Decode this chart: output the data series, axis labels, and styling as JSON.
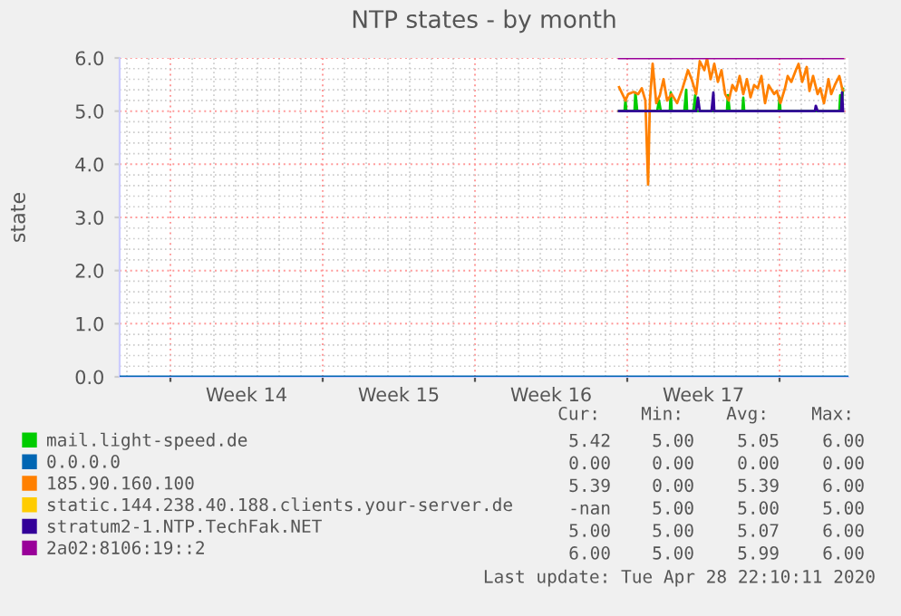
{
  "chart_data": {
    "type": "line",
    "title": "NTP states - by month",
    "ylabel": "state",
    "xlim": [
      "2020-03-26T16:00",
      "2020-04-29T04:00"
    ],
    "ylim": [
      0,
      6
    ],
    "xticks": [
      {
        "value": "2020-03-29T00:00",
        "label": null
      },
      {
        "value": "2020-04-01T12:00",
        "label": "Week 14"
      },
      {
        "value": "2020-04-05T00:00",
        "label": null
      },
      {
        "value": "2020-04-08T12:00",
        "label": "Week 15"
      },
      {
        "value": "2020-04-12T00:00",
        "label": null
      },
      {
        "value": "2020-04-15T12:00",
        "label": "Week 16"
      },
      {
        "value": "2020-04-19T00:00",
        "label": null
      },
      {
        "value": "2020-04-22T12:00",
        "label": "Week 17"
      },
      {
        "value": "2020-04-26T00:00",
        "label": null
      }
    ],
    "yticks": [
      {
        "value": 0,
        "label": "0.0"
      },
      {
        "value": 1,
        "label": "1.0"
      },
      {
        "value": 2,
        "label": "2.0"
      },
      {
        "value": 3,
        "label": "3.0"
      },
      {
        "value": 4,
        "label": "4.0"
      },
      {
        "value": 5,
        "label": "5.0"
      },
      {
        "value": 6,
        "label": "6.0"
      }
    ],
    "grid": true,
    "legend": "bottom",
    "marker": "none",
    "line_style": "solid",
    "series": [
      {
        "name": "mail.light-speed.de",
        "color": "#00cc00",
        "x": [
          "2020-04-18T15:00",
          "2020-04-18T21:00",
          "2020-04-18T22:00",
          "2020-04-18T23:00",
          "2020-04-19T08:00",
          "2020-04-19T09:00",
          "2020-04-19T11:00",
          "2020-04-20T09:00",
          "2020-04-20T11:00",
          "2020-04-20T13:00",
          "2020-04-20T23:00",
          "2020-04-21T00:00",
          "2020-04-21T01:00",
          "2020-04-21T15:00",
          "2020-04-21T17:00",
          "2020-04-21T18:00",
          "2020-04-22T01:00",
          "2020-04-22T03:00",
          "2020-04-22T04:00",
          "2020-04-23T14:00",
          "2020-04-23T15:00",
          "2020-04-23T17:00",
          "2020-04-24T07:00",
          "2020-04-24T08:00",
          "2020-04-24T09:00",
          "2020-04-25T23:00",
          "2020-04-26T00:00",
          "2020-04-26T01:00",
          "2020-04-28T18:00",
          "2020-04-28T19:00",
          "2020-04-28T20:00",
          "2020-04-28T22:00"
        ],
        "values": [
          5,
          5,
          5.2,
          5,
          5,
          5.35,
          5,
          5,
          5.2,
          5,
          5,
          5.35,
          5,
          5,
          5.4,
          5,
          5,
          5.3,
          5,
          5,
          5.3,
          5,
          5,
          5.25,
          5,
          5,
          5.25,
          5,
          5,
          5.3,
          5,
          5.42
        ]
      },
      {
        "name": "0.0.0.0",
        "color": "#0066b3",
        "x": [
          "2020-03-26T16:00",
          "2020-04-29T04:00"
        ],
        "values": [
          0,
          0
        ]
      },
      {
        "name": "185.90.160.100",
        "color": "#ff8000",
        "x": [
          "2020-04-18T15:00",
          "2020-04-18T22:00",
          "2020-04-19T01:00",
          "2020-04-19T07:00",
          "2020-04-19T12:00",
          "2020-04-19T16:00",
          "2020-04-19T20:00",
          "2020-04-19T23:00",
          "2020-04-20T01:00",
          "2020-04-20T04:00",
          "2020-04-20T08:00",
          "2020-04-20T12:00",
          "2020-04-20T16:00",
          "2020-04-20T20:00",
          "2020-04-21T01:00",
          "2020-04-21T07:00",
          "2020-04-21T13:00",
          "2020-04-21T19:00",
          "2020-04-21T23:00",
          "2020-04-22T04:00",
          "2020-04-22T08:00",
          "2020-04-22T13:00",
          "2020-04-22T16:00",
          "2020-04-22T20:00",
          "2020-04-23T00:00",
          "2020-04-23T04:00",
          "2020-04-23T08:00",
          "2020-04-23T12:00",
          "2020-04-23T16:00",
          "2020-04-23T20:00",
          "2020-04-24T00:00",
          "2020-04-24T04:00",
          "2020-04-24T08:00",
          "2020-04-24T12:00",
          "2020-04-24T16:00",
          "2020-04-24T20:00",
          "2020-04-25T00:00",
          "2020-04-25T04:00",
          "2020-04-25T08:00",
          "2020-04-25T12:00",
          "2020-04-25T18:00",
          "2020-04-25T21:00",
          "2020-04-26T01:00",
          "2020-04-26T06:00",
          "2020-04-26T09:00",
          "2020-04-26T13:00",
          "2020-04-26T18:00",
          "2020-04-26T21:00",
          "2020-04-27T01:00",
          "2020-04-27T06:00",
          "2020-04-27T09:00",
          "2020-04-27T13:00",
          "2020-04-27T18:00",
          "2020-04-27T21:00",
          "2020-04-28T01:00",
          "2020-04-28T06:00",
          "2020-04-28T09:00",
          "2020-04-28T13:00",
          "2020-04-28T18:00",
          "2020-04-28T21:00",
          "2020-04-28T22:00"
        ],
        "values": [
          5.45,
          5.2,
          5.32,
          5.36,
          5.32,
          5.43,
          5.2,
          3.62,
          5.2,
          5.89,
          5.15,
          5.3,
          5.6,
          5.2,
          5.32,
          5.15,
          5.43,
          5.77,
          5.6,
          5.32,
          5.94,
          5.77,
          5.99,
          5.6,
          5.89,
          5.55,
          5.77,
          5.32,
          5.2,
          5.49,
          5.38,
          5.66,
          5.32,
          5.6,
          5.26,
          5.49,
          5.43,
          5.66,
          5.15,
          5.49,
          5.32,
          5.38,
          5.15,
          5.43,
          5.66,
          5.55,
          5.77,
          5.89,
          5.55,
          5.83,
          5.38,
          5.66,
          5.32,
          5.43,
          5.15,
          5.6,
          5.32,
          5.49,
          5.66,
          5.43,
          5.39
        ]
      },
      {
        "name": "static.144.238.40.188.clients.your-server.de",
        "color": "#ffcc00"
      },
      {
        "name": "stratum2-1.NTP.TechFak.NET",
        "color": "#330099",
        "x": [
          "2020-04-18T15:00",
          "2020-04-22T04:00",
          "2020-04-22T06:00",
          "2020-04-22T08:00",
          "2020-04-22T21:00",
          "2020-04-22T23:00",
          "2020-04-23T00:00",
          "2020-04-27T15:00",
          "2020-04-27T16:00",
          "2020-04-27T18:00",
          "2020-04-28T20:00",
          "2020-04-28T21:00",
          "2020-04-28T22:00"
        ],
        "values": [
          5,
          5,
          5.25,
          5,
          5,
          5.35,
          5,
          5,
          5.1,
          5,
          5,
          5.35,
          5
        ]
      },
      {
        "name": "2a02:8106:19::2",
        "color": "#990099",
        "x": [
          "2020-04-18T15:00",
          "2020-04-28T22:00"
        ],
        "values": [
          6,
          6
        ]
      }
    ],
    "annotations": [
      "Cur:",
      "Min:",
      "Avg:",
      "Max:",
      "5.42",
      "5.00",
      "5.05",
      "6.00",
      "0.00",
      "0.00",
      "0.00",
      "0.00",
      "5.39",
      "0.00",
      "5.39",
      "6.00",
      "-nan",
      "5.00",
      "5.00",
      "5.00",
      "5.00",
      "5.00",
      "5.07",
      "6.00",
      "6.00",
      "5.00",
      "5.99",
      "6.00",
      "Last update: Tue Apr 28 22:10:11 2020"
    ]
  }
}
